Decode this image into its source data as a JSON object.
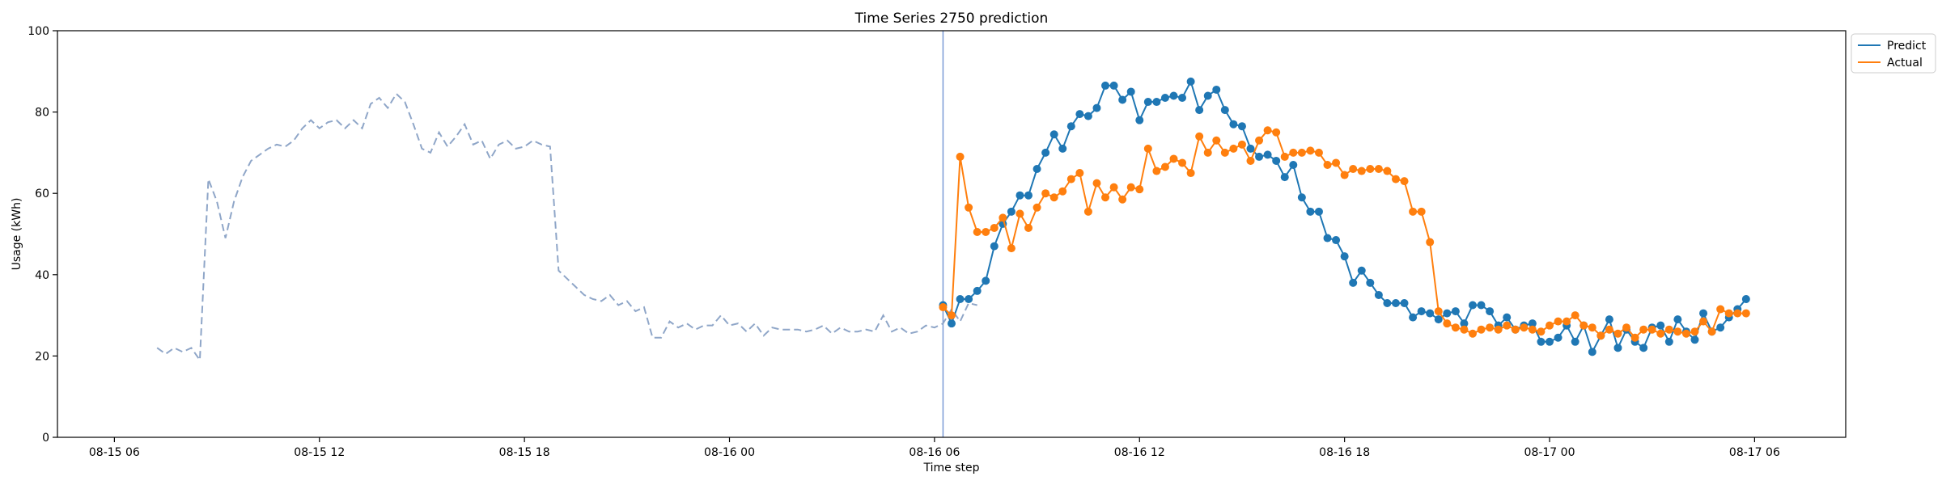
{
  "chart_data": {
    "type": "line",
    "title": "Time Series 2750 prediction",
    "xlabel": "Time step",
    "ylabel": "Usage (kWh)",
    "ylim": [
      0,
      100
    ],
    "yticks": [
      0,
      20,
      40,
      60,
      80,
      100
    ],
    "xlim": [
      "2023-08-15 04:20",
      "2023-08-17 08:40"
    ],
    "xticks": [
      {
        "label": "08-15 06",
        "t": "2023-08-15 06:00"
      },
      {
        "label": "08-15 12",
        "t": "2023-08-15 12:00"
      },
      {
        "label": "08-15 18",
        "t": "2023-08-15 18:00"
      },
      {
        "label": "08-16 00",
        "t": "2023-08-16 00:00"
      },
      {
        "label": "08-16 06",
        "t": "2023-08-16 06:00"
      },
      {
        "label": "08-16 12",
        "t": "2023-08-16 12:00"
      },
      {
        "label": "08-16 18",
        "t": "2023-08-16 18:00"
      },
      {
        "label": "08-17 00",
        "t": "2023-08-17 00:00"
      },
      {
        "label": "08-17 06",
        "t": "2023-08-17 06:00"
      }
    ],
    "forecast_start": "2023-08-16 06:15",
    "legend_position": "top-right",
    "grid": false,
    "history": {
      "start": "2023-08-15 07:15",
      "interval_minutes": 15,
      "color": "#8fa6c8",
      "values": [
        22,
        20.5,
        22,
        21,
        22,
        19,
        63.5,
        58,
        49,
        58,
        64,
        68,
        69.5,
        71,
        72,
        71.5,
        73,
        76,
        78,
        76,
        77.5,
        78,
        76,
        78,
        76,
        82,
        83.5,
        81,
        84.5,
        82.5,
        77,
        71,
        70,
        75,
        71.5,
        74,
        77,
        72,
        73,
        68.5,
        72,
        73,
        71,
        71.5,
        73,
        72,
        71.5,
        41,
        39,
        37,
        35,
        34,
        33.5,
        35,
        32.5,
        33.5,
        31,
        32,
        24.5,
        24.5,
        28.5,
        27,
        28,
        26.5,
        27.5,
        27.5,
        30,
        27.5,
        28,
        26,
        28,
        25,
        27,
        26.5,
        26.5,
        26.5,
        26,
        26.5,
        27.5,
        25.5,
        27,
        26,
        26,
        26.5,
        26,
        30,
        26,
        27,
        25.5,
        26,
        27.5,
        27,
        28,
        31.5,
        28.5,
        33,
        32.5
      ]
    },
    "series": [
      {
        "name": "Predict",
        "color": "#1f77b4",
        "start": "2023-08-16 06:15",
        "interval_minutes": 15,
        "values": [
          32.5,
          28,
          34,
          34,
          36,
          38.5,
          47,
          52.5,
          55.5,
          59.5,
          59.5,
          66,
          70,
          74.5,
          71,
          76.5,
          79.5,
          79,
          81,
          86.5,
          86.5,
          83,
          85,
          78,
          82.5,
          82.5,
          83.5,
          84,
          83.5,
          87.5,
          80.5,
          84,
          85.5,
          80.5,
          77,
          76.5,
          71,
          69,
          69.5,
          68,
          64,
          67,
          59,
          55.5,
          55.5,
          49,
          48.5,
          44.5,
          38,
          41,
          38,
          35,
          33,
          33,
          33,
          29.5,
          31,
          30.5,
          29,
          30.5,
          31,
          28,
          32.5,
          32.5,
          31,
          27.5,
          29.5,
          26.5,
          27.5,
          28,
          23.5,
          23.5,
          24.5,
          27.5,
          23.5,
          27.5,
          21,
          25,
          29,
          22,
          26.5,
          23.5,
          22,
          27,
          27.5,
          23.5,
          29,
          26,
          24,
          30.5,
          26,
          27,
          29.5,
          31.5,
          34
        ]
      },
      {
        "name": "Actual",
        "color": "#ff7f0e",
        "start": "2023-08-16 06:15",
        "interval_minutes": 15,
        "values": [
          32,
          30,
          69,
          56.5,
          50.5,
          50.5,
          51.5,
          54,
          46.5,
          55,
          51.5,
          56.5,
          60,
          59,
          60.5,
          63.5,
          65,
          55.5,
          62.5,
          59,
          61.5,
          58.5,
          61.5,
          61,
          71,
          65.5,
          66.5,
          68.5,
          67.5,
          65,
          74,
          70,
          73,
          70,
          71,
          72,
          68,
          73,
          75.5,
          75,
          69,
          70,
          70,
          70.5,
          70,
          67,
          67.5,
          64.5,
          66,
          65.5,
          66,
          66,
          65.5,
          63.5,
          63,
          55.5,
          55.5,
          48,
          31,
          28,
          27,
          26.5,
          25.5,
          26.5,
          27,
          26.5,
          27.5,
          26.5,
          27,
          26.5,
          26,
          27.5,
          28.5,
          28.5,
          30,
          27.5,
          27,
          25,
          26.5,
          25.5,
          27,
          24.5,
          26.5,
          26.5,
          25.5,
          26.5,
          26,
          25.5,
          26,
          28.5,
          26,
          31.5,
          30.5,
          30.5,
          30.5
        ]
      }
    ]
  }
}
